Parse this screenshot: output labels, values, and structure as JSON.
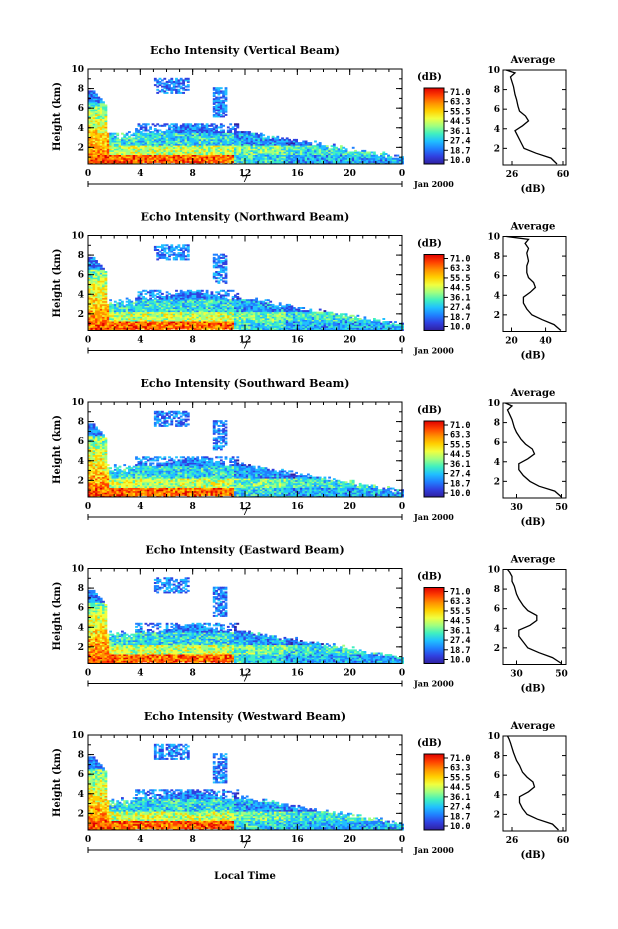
{
  "figure": {
    "xlabel": "Local Time",
    "date_label": "Jan 2000",
    "day_marker": "7"
  },
  "colorbar": {
    "unit": "(dB)",
    "ticks": [
      "71.0",
      "63.3",
      "55.5",
      "44.5",
      "36.1",
      "27.4",
      "18.7",
      "10.0"
    ],
    "colors": [
      "#e00000",
      "#ff4000",
      "#ff9000",
      "#ffd000",
      "#f0ff40",
      "#a0ff80",
      "#40f0c0",
      "#20c0ff",
      "#2080ff",
      "#3040e0",
      "#3020a0"
    ]
  },
  "chart_data": [
    {
      "type": "heatmap",
      "title": "Echo Intensity (Vertical Beam)",
      "ylabel": "Height (km)",
      "x_ticks": [
        "0",
        "4",
        "8",
        "12",
        "16",
        "20",
        "0"
      ],
      "y_ticks": [
        "2",
        "4",
        "6",
        "8",
        "10"
      ],
      "xlim": [
        0,
        24
      ],
      "ylim": [
        0.3,
        10
      ],
      "profile": {
        "title": "Average",
        "xlabel": "(dB)",
        "x_ticks": [
          "26",
          "60"
        ],
        "xlim": [
          20,
          62
        ],
        "y_ticks": [
          "2",
          "4",
          "6",
          "8",
          "10"
        ],
        "points": [
          [
            56,
            0.4
          ],
          [
            52,
            1.0
          ],
          [
            42,
            1.5
          ],
          [
            34,
            2.0
          ],
          [
            32,
            2.6
          ],
          [
            30,
            3.2
          ],
          [
            28,
            3.8
          ],
          [
            33,
            4.3
          ],
          [
            37,
            4.8
          ],
          [
            35,
            5.3
          ],
          [
            31,
            5.8
          ],
          [
            30,
            6.3
          ],
          [
            29,
            7.0
          ],
          [
            28,
            7.5
          ],
          [
            27,
            8.3
          ],
          [
            26,
            8.8
          ],
          [
            25,
            9.3
          ],
          [
            28,
            9.7
          ],
          [
            22,
            10.0
          ]
        ]
      }
    },
    {
      "type": "heatmap",
      "title": "Echo Intensity (Northward Beam)",
      "ylabel": "Height (km)",
      "x_ticks": [
        "0",
        "4",
        "8",
        "12",
        "16",
        "20",
        "0"
      ],
      "y_ticks": [
        "2",
        "4",
        "6",
        "8",
        "10"
      ],
      "xlim": [
        0,
        24
      ],
      "ylim": [
        0.3,
        10
      ],
      "profile": {
        "title": "Average",
        "xlabel": "(dB)",
        "x_ticks": [
          "20",
          "40"
        ],
        "xlim": [
          15,
          52
        ],
        "y_ticks": [
          "2",
          "4",
          "6",
          "8",
          "10"
        ],
        "points": [
          [
            49,
            0.4
          ],
          [
            45,
            1.0
          ],
          [
            38,
            1.5
          ],
          [
            32,
            2.0
          ],
          [
            29,
            2.6
          ],
          [
            27,
            3.2
          ],
          [
            27,
            3.8
          ],
          [
            31,
            4.3
          ],
          [
            34,
            4.8
          ],
          [
            33,
            5.3
          ],
          [
            30,
            5.8
          ],
          [
            29,
            6.3
          ],
          [
            29,
            7.0
          ],
          [
            30,
            7.5
          ],
          [
            29,
            8.3
          ],
          [
            30,
            8.8
          ],
          [
            28,
            9.3
          ],
          [
            30,
            9.7
          ],
          [
            17,
            10.0
          ]
        ]
      }
    },
    {
      "type": "heatmap",
      "title": "Echo Intensity (Southward Beam)",
      "ylabel": "Height (km)",
      "x_ticks": [
        "0",
        "4",
        "8",
        "12",
        "16",
        "20",
        "0"
      ],
      "y_ticks": [
        "2",
        "4",
        "6",
        "8",
        "10"
      ],
      "xlim": [
        0,
        24
      ],
      "ylim": [
        0.3,
        10
      ],
      "profile": {
        "title": "Average",
        "xlabel": "(dB)",
        "x_ticks": [
          "30",
          "50"
        ],
        "xlim": [
          24,
          52
        ],
        "y_ticks": [
          "2",
          "4",
          "6",
          "8",
          "10"
        ],
        "points": [
          [
            50,
            0.4
          ],
          [
            47,
            1.0
          ],
          [
            40,
            1.5
          ],
          [
            36,
            2.0
          ],
          [
            33,
            2.6
          ],
          [
            31,
            3.2
          ],
          [
            31,
            3.8
          ],
          [
            35,
            4.3
          ],
          [
            38,
            4.8
          ],
          [
            37,
            5.3
          ],
          [
            34,
            5.8
          ],
          [
            32,
            6.3
          ],
          [
            30,
            7.0
          ],
          [
            29,
            7.5
          ],
          [
            28,
            8.3
          ],
          [
            27,
            8.8
          ],
          [
            26,
            9.3
          ],
          [
            28,
            9.7
          ],
          [
            25,
            10.0
          ]
        ]
      }
    },
    {
      "type": "heatmap",
      "title": "Echo Intensity (Eastward Beam)",
      "ylabel": "Height (km)",
      "x_ticks": [
        "0",
        "4",
        "8",
        "12",
        "16",
        "20",
        "0"
      ],
      "y_ticks": [
        "2",
        "4",
        "6",
        "8",
        "10"
      ],
      "xlim": [
        0,
        24
      ],
      "ylim": [
        0.3,
        10
      ],
      "profile": {
        "title": "Average",
        "xlabel": "(dB)",
        "x_ticks": [
          "30",
          "50"
        ],
        "xlim": [
          24,
          52
        ],
        "y_ticks": [
          "2",
          "4",
          "6",
          "8",
          "10"
        ],
        "points": [
          [
            50,
            0.4
          ],
          [
            46,
            1.0
          ],
          [
            40,
            1.5
          ],
          [
            35,
            2.0
          ],
          [
            33,
            2.6
          ],
          [
            31,
            3.2
          ],
          [
            31,
            3.8
          ],
          [
            36,
            4.3
          ],
          [
            39,
            4.8
          ],
          [
            39,
            5.3
          ],
          [
            35,
            5.8
          ],
          [
            33,
            6.3
          ],
          [
            31,
            7.0
          ],
          [
            30,
            7.5
          ],
          [
            29,
            8.3
          ],
          [
            28,
            8.8
          ],
          [
            28,
            9.3
          ],
          [
            27,
            9.7
          ],
          [
            26,
            10.0
          ]
        ]
      }
    },
    {
      "type": "heatmap",
      "title": "Echo Intensity (Westward Beam)",
      "ylabel": "Height (km)",
      "x_ticks": [
        "0",
        "4",
        "8",
        "12",
        "16",
        "20",
        "0"
      ],
      "y_ticks": [
        "2",
        "4",
        "6",
        "8",
        "10"
      ],
      "xlim": [
        0,
        24
      ],
      "ylim": [
        0.3,
        10
      ],
      "profile": {
        "title": "Average",
        "xlabel": "(dB)",
        "x_ticks": [
          "26",
          "60"
        ],
        "xlim": [
          20,
          62
        ],
        "y_ticks": [
          "2",
          "4",
          "6",
          "8",
          "10"
        ],
        "points": [
          [
            57,
            0.4
          ],
          [
            53,
            1.0
          ],
          [
            43,
            1.5
          ],
          [
            36,
            2.0
          ],
          [
            33,
            2.6
          ],
          [
            31,
            3.2
          ],
          [
            31,
            3.8
          ],
          [
            37,
            4.3
          ],
          [
            41,
            4.8
          ],
          [
            40,
            5.3
          ],
          [
            36,
            5.8
          ],
          [
            33,
            6.3
          ],
          [
            31,
            7.0
          ],
          [
            29,
            7.5
          ],
          [
            27,
            8.3
          ],
          [
            26,
            8.8
          ],
          [
            25,
            9.3
          ],
          [
            24,
            9.7
          ],
          [
            23,
            10.0
          ]
        ]
      }
    }
  ]
}
